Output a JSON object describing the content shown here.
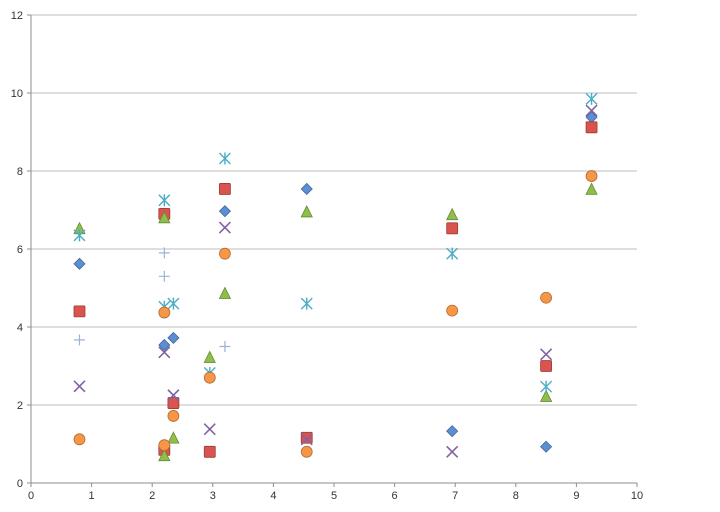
{
  "chart_data": {
    "type": "scatter",
    "title": "",
    "xlabel": "",
    "ylabel": "",
    "xlim": [
      0,
      10
    ],
    "ylim": [
      0,
      12
    ],
    "x_ticks": [
      0,
      1,
      2,
      3,
      4,
      5,
      6,
      7,
      8,
      9,
      10
    ],
    "y_ticks": [
      0,
      2,
      4,
      6,
      8,
      10,
      12
    ],
    "grid": "horizontal",
    "legend": "none",
    "series": [
      {
        "marker": "diamond",
        "color": "#5b8fd4",
        "points": [
          [
            0.8,
            5.62
          ],
          [
            2.2,
            3.54
          ],
          [
            2.35,
            3.72
          ],
          [
            3.2,
            6.97
          ],
          [
            4.55,
            7.54
          ],
          [
            6.95,
            1.33
          ],
          [
            8.5,
            0.93
          ],
          [
            9.25,
            9.38
          ]
        ]
      },
      {
        "marker": "square",
        "color": "#d9534f",
        "points": [
          [
            0.8,
            4.4
          ],
          [
            2.2,
            6.9
          ],
          [
            2.2,
            0.85
          ],
          [
            2.35,
            2.05
          ],
          [
            2.95,
            0.8
          ],
          [
            3.2,
            7.54
          ],
          [
            4.55,
            1.16
          ],
          [
            6.95,
            6.53
          ],
          [
            8.5,
            3.0
          ],
          [
            9.25,
            9.12
          ]
        ]
      },
      {
        "marker": "triangle",
        "color": "#8fbf4a",
        "points": [
          [
            0.8,
            6.52
          ],
          [
            2.2,
            6.8
          ],
          [
            2.2,
            0.7
          ],
          [
            2.35,
            1.15
          ],
          [
            2.95,
            3.22
          ],
          [
            3.2,
            4.86
          ],
          [
            4.55,
            6.95
          ],
          [
            6.95,
            6.88
          ],
          [
            8.5,
            2.22
          ],
          [
            9.25,
            7.53
          ]
        ]
      },
      {
        "marker": "x",
        "color": "#8064a2",
        "points": [
          [
            0.8,
            2.48
          ],
          [
            2.2,
            3.35
          ],
          [
            2.35,
            2.25
          ],
          [
            2.95,
            1.38
          ],
          [
            3.2,
            6.55
          ],
          [
            4.55,
            1.12
          ],
          [
            6.95,
            0.8
          ],
          [
            8.5,
            3.3
          ],
          [
            9.25,
            9.55
          ]
        ]
      },
      {
        "marker": "asterisk",
        "color": "#4bacc6",
        "points": [
          [
            0.8,
            6.35
          ],
          [
            2.2,
            7.25
          ],
          [
            2.2,
            4.52
          ],
          [
            2.35,
            4.6
          ],
          [
            2.95,
            2.82
          ],
          [
            3.2,
            8.32
          ],
          [
            4.55,
            4.6
          ],
          [
            6.95,
            5.88
          ],
          [
            8.5,
            2.47
          ],
          [
            9.25,
            9.85
          ]
        ]
      },
      {
        "marker": "circle",
        "color": "#f79646",
        "points": [
          [
            0.8,
            1.12
          ],
          [
            2.2,
            4.37
          ],
          [
            2.2,
            0.97
          ],
          [
            2.35,
            1.72
          ],
          [
            2.95,
            2.7
          ],
          [
            3.2,
            5.88
          ],
          [
            4.55,
            0.8
          ],
          [
            6.95,
            4.42
          ],
          [
            8.5,
            4.75
          ],
          [
            9.25,
            7.87
          ]
        ]
      },
      {
        "marker": "plus",
        "color": "#9bb3d6",
        "points": [
          [
            0.8,
            3.67
          ],
          [
            2.2,
            5.9
          ],
          [
            2.2,
            5.3
          ],
          [
            3.2,
            3.5
          ]
        ]
      }
    ]
  }
}
